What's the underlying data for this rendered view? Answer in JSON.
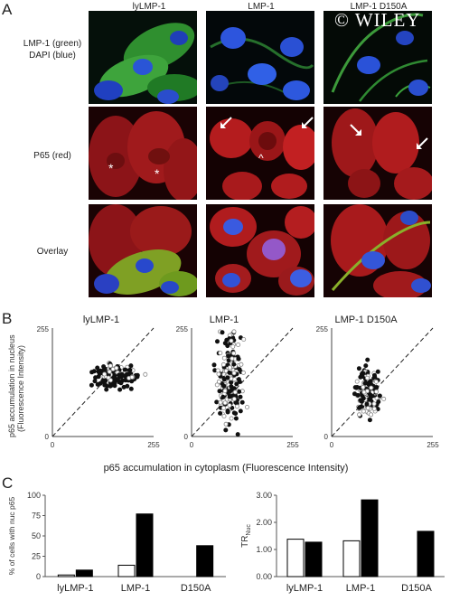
{
  "panel_labels": {
    "a": "A",
    "b": "B",
    "c": "C"
  },
  "columns": [
    "lyLMP-1",
    "LMP-1",
    "LMP-1 D150A"
  ],
  "rows": [
    {
      "lines": [
        "LMP-1 (green)",
        "DAPI (blue)"
      ]
    },
    {
      "lines": [
        "P65 (red)"
      ]
    },
    {
      "lines": [
        "Overlay"
      ]
    }
  ],
  "watermark": "© WILEY",
  "micrograph_marks": {
    "asterisk": "*",
    "caret": "^"
  },
  "scatter": {
    "ylabel_line1": "p65 accumulation in nucleus",
    "ylabel_line2": "(Fluorescence Intensity)",
    "xlabel": "p65 accumulation in cytoplasm (Fluorescence Intensity)",
    "tick_min": "0",
    "tick_max": "255",
    "plots": [
      "lyLMP-1",
      "LMP-1",
      "LMP-1 D150A"
    ]
  },
  "chart_data": [
    {
      "type": "bar",
      "ylabel": "% of cells with nuc p65",
      "categories": [
        "lyLMP-1",
        "LMP-1",
        "D150A"
      ],
      "ylim": [
        0,
        100
      ],
      "yticks": [
        "0",
        "25",
        "50",
        "75",
        "100"
      ],
      "series": [
        {
          "values": [
            2,
            14,
            0
          ],
          "color": "#ffffff"
        },
        {
          "values": [
            8,
            77,
            38
          ],
          "color": "#000000"
        }
      ]
    },
    {
      "type": "bar",
      "ylabel": "TR",
      "ylabel_sub": "Nuc",
      "categories": [
        "lyLMP-1",
        "LMP-1",
        "D150A"
      ],
      "ylim": [
        0,
        3
      ],
      "yticks": [
        "0.00",
        "1.00",
        "2.00",
        "3.00"
      ],
      "series": [
        {
          "values": [
            1.38,
            1.32,
            0
          ],
          "color": "#ffffff"
        },
        {
          "values": [
            1.27,
            2.83,
            1.67
          ],
          "color": "#000000"
        }
      ]
    }
  ]
}
